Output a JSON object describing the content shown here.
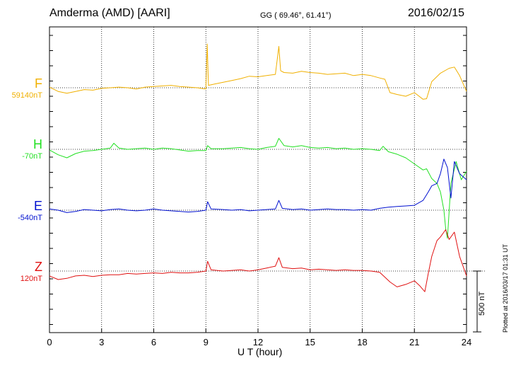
{
  "header": {
    "station": "Amderma (AMD)  [AARI]",
    "coords": "GG ( 69.46°,  61.41°)",
    "date": "2016/02/15"
  },
  "footer": "Plotted at 2016/03/17 01:31  UT",
  "scale_label": "500 nT",
  "chart_data": {
    "type": "line",
    "xlabel": "U T (hour)",
    "xlim": [
      0,
      24
    ],
    "x_ticks": [
      "0",
      "3",
      "6",
      "9",
      "12",
      "15",
      "18",
      "21",
      "24"
    ],
    "grid": "dotted",
    "scale_bar_nT": 500,
    "series": [
      {
        "name": "F",
        "baseline_label": "59140nT",
        "color": "#f0b000",
        "points": [
          [
            0,
            5
          ],
          [
            0.5,
            -30
          ],
          [
            1,
            -45
          ],
          [
            1.5,
            -30
          ],
          [
            2,
            -15
          ],
          [
            2.5,
            -20
          ],
          [
            3,
            -5
          ],
          [
            3.5,
            0
          ],
          [
            4,
            5
          ],
          [
            4.5,
            0
          ],
          [
            5,
            -10
          ],
          [
            5.5,
            5
          ],
          [
            6,
            10
          ],
          [
            6.5,
            15
          ],
          [
            7,
            20
          ],
          [
            7.5,
            10
          ],
          [
            8,
            5
          ],
          [
            8.5,
            0
          ],
          [
            9,
            -10
          ],
          [
            9.08,
            360
          ],
          [
            9.15,
            20
          ],
          [
            9.5,
            30
          ],
          [
            10,
            45
          ],
          [
            10.5,
            60
          ],
          [
            11,
            75
          ],
          [
            11.5,
            95
          ],
          [
            12,
            90
          ],
          [
            12.5,
            100
          ],
          [
            13,
            110
          ],
          [
            13.2,
            340
          ],
          [
            13.3,
            140
          ],
          [
            13.5,
            125
          ],
          [
            14,
            120
          ],
          [
            14.5,
            135
          ],
          [
            15,
            125
          ],
          [
            15.5,
            120
          ],
          [
            16,
            110
          ],
          [
            16.5,
            115
          ],
          [
            17,
            120
          ],
          [
            17.5,
            100
          ],
          [
            18,
            110
          ],
          [
            18.5,
            100
          ],
          [
            19,
            80
          ],
          [
            19.3,
            70
          ],
          [
            19.6,
            -40
          ],
          [
            20,
            -55
          ],
          [
            20.5,
            -70
          ],
          [
            21,
            -40
          ],
          [
            21.5,
            -95
          ],
          [
            21.7,
            -90
          ],
          [
            22,
            50
          ],
          [
            22.5,
            120
          ],
          [
            23,
            160
          ],
          [
            23.3,
            170
          ],
          [
            23.6,
            100
          ],
          [
            24,
            -30
          ]
        ]
      },
      {
        "name": "H",
        "baseline_label": "-70nT",
        "color": "#22e022",
        "points": [
          [
            0,
            -5
          ],
          [
            0.5,
            -45
          ],
          [
            1,
            -70
          ],
          [
            1.5,
            -35
          ],
          [
            2,
            -15
          ],
          [
            2.5,
            -10
          ],
          [
            3,
            0
          ],
          [
            3.5,
            10
          ],
          [
            3.7,
            50
          ],
          [
            4,
            10
          ],
          [
            4.5,
            0
          ],
          [
            5,
            5
          ],
          [
            5.5,
            10
          ],
          [
            6,
            0
          ],
          [
            6.5,
            10
          ],
          [
            7,
            5
          ],
          [
            7.5,
            -5
          ],
          [
            8,
            -15
          ],
          [
            8.5,
            -10
          ],
          [
            9,
            -10
          ],
          [
            9.1,
            30
          ],
          [
            9.3,
            5
          ],
          [
            10,
            5
          ],
          [
            10.5,
            10
          ],
          [
            11,
            15
          ],
          [
            11.5,
            5
          ],
          [
            12,
            0
          ],
          [
            12.5,
            15
          ],
          [
            13,
            25
          ],
          [
            13.2,
            90
          ],
          [
            13.5,
            30
          ],
          [
            14,
            20
          ],
          [
            14.5,
            30
          ],
          [
            15,
            15
          ],
          [
            15.5,
            10
          ],
          [
            16,
            15
          ],
          [
            16.5,
            5
          ],
          [
            17,
            10
          ],
          [
            17.5,
            0
          ],
          [
            18,
            5
          ],
          [
            18.5,
            0
          ],
          [
            19,
            -10
          ],
          [
            19.2,
            25
          ],
          [
            19.5,
            -20
          ],
          [
            20,
            -40
          ],
          [
            20.5,
            -70
          ],
          [
            21,
            -120
          ],
          [
            21.5,
            -170
          ],
          [
            21.7,
            -160
          ],
          [
            22,
            -240
          ],
          [
            22.3,
            -280
          ],
          [
            22.5,
            -350
          ],
          [
            22.7,
            -500
          ],
          [
            22.8,
            -650
          ],
          [
            22.9,
            -730
          ],
          [
            23.1,
            -280
          ],
          [
            23.4,
            -100
          ],
          [
            23.7,
            -250
          ],
          [
            24,
            -180
          ]
        ]
      },
      {
        "name": "E",
        "baseline_label": "-540nT",
        "color": "#0010d0",
        "points": [
          [
            0,
            10
          ],
          [
            0.5,
            0
          ],
          [
            1,
            -20
          ],
          [
            1.5,
            -10
          ],
          [
            2,
            5
          ],
          [
            2.5,
            0
          ],
          [
            3,
            -5
          ],
          [
            3.5,
            5
          ],
          [
            4,
            10
          ],
          [
            4.5,
            0
          ],
          [
            5,
            -5
          ],
          [
            5.5,
            0
          ],
          [
            6,
            10
          ],
          [
            6.5,
            0
          ],
          [
            7,
            -5
          ],
          [
            7.5,
            -10
          ],
          [
            8,
            -15
          ],
          [
            8.5,
            -10
          ],
          [
            9,
            0
          ],
          [
            9.1,
            70
          ],
          [
            9.3,
            10
          ],
          [
            10,
            5
          ],
          [
            10.5,
            0
          ],
          [
            11,
            5
          ],
          [
            11.5,
            -5
          ],
          [
            12,
            0
          ],
          [
            12.5,
            5
          ],
          [
            13,
            10
          ],
          [
            13.2,
            80
          ],
          [
            13.4,
            15
          ],
          [
            14,
            5
          ],
          [
            14.5,
            10
          ],
          [
            15,
            0
          ],
          [
            15.5,
            5
          ],
          [
            16,
            10
          ],
          [
            16.5,
            5
          ],
          [
            17,
            5
          ],
          [
            17.5,
            0
          ],
          [
            18,
            5
          ],
          [
            18.5,
            0
          ],
          [
            19,
            15
          ],
          [
            19.5,
            25
          ],
          [
            20,
            30
          ],
          [
            20.5,
            35
          ],
          [
            21,
            40
          ],
          [
            21.5,
            80
          ],
          [
            21.8,
            150
          ],
          [
            22,
            200
          ],
          [
            22.3,
            220
          ],
          [
            22.5,
            300
          ],
          [
            22.7,
            420
          ],
          [
            22.9,
            350
          ],
          [
            23.1,
            100
          ],
          [
            23.3,
            400
          ],
          [
            23.6,
            300
          ],
          [
            24,
            250
          ]
        ]
      },
      {
        "name": "Z",
        "baseline_label": "120nT",
        "color": "#e01010",
        "points": [
          [
            0,
            -40
          ],
          [
            0.5,
            -70
          ],
          [
            1,
            -60
          ],
          [
            1.5,
            -40
          ],
          [
            2,
            -35
          ],
          [
            2.5,
            -45
          ],
          [
            3,
            -35
          ],
          [
            3.5,
            -30
          ],
          [
            4,
            -30
          ],
          [
            4.5,
            -20
          ],
          [
            5,
            -25
          ],
          [
            5.5,
            -20
          ],
          [
            6,
            -15
          ],
          [
            6.5,
            -20
          ],
          [
            7,
            -10
          ],
          [
            7.5,
            -15
          ],
          [
            8,
            -15
          ],
          [
            8.5,
            -10
          ],
          [
            9,
            0
          ],
          [
            9.1,
            80
          ],
          [
            9.3,
            10
          ],
          [
            10,
            0
          ],
          [
            10.5,
            5
          ],
          [
            11,
            10
          ],
          [
            11.5,
            0
          ],
          [
            12,
            10
          ],
          [
            12.5,
            25
          ],
          [
            13,
            40
          ],
          [
            13.2,
            110
          ],
          [
            13.4,
            30
          ],
          [
            14,
            20
          ],
          [
            14.5,
            25
          ],
          [
            15,
            10
          ],
          [
            15.5,
            15
          ],
          [
            16,
            10
          ],
          [
            16.5,
            5
          ],
          [
            17,
            10
          ],
          [
            17.5,
            5
          ],
          [
            18,
            5
          ],
          [
            18.5,
            0
          ],
          [
            19,
            -10
          ],
          [
            19.3,
            -50
          ],
          [
            19.6,
            -90
          ],
          [
            20,
            -130
          ],
          [
            20.5,
            -110
          ],
          [
            21,
            -80
          ],
          [
            21.3,
            -120
          ],
          [
            21.6,
            -170
          ],
          [
            21.8,
            -20
          ],
          [
            22,
            120
          ],
          [
            22.3,
            250
          ],
          [
            22.5,
            280
          ],
          [
            22.8,
            340
          ],
          [
            23,
            260
          ],
          [
            23.3,
            320
          ],
          [
            23.6,
            120
          ],
          [
            24,
            -40
          ]
        ]
      }
    ]
  }
}
